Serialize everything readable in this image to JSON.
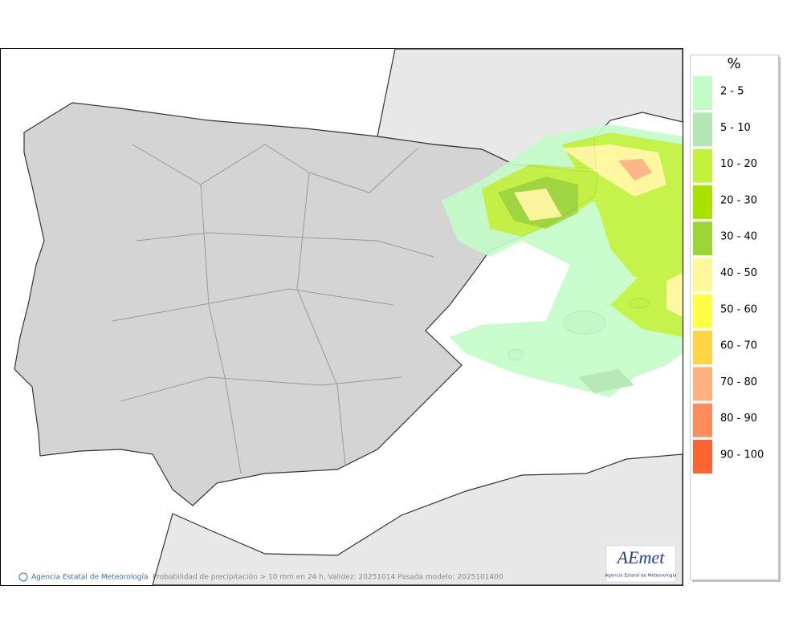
{
  "legend": {
    "title": "%",
    "items": [
      {
        "label": "2 - 5",
        "color": "#c4fcc8"
      },
      {
        "label": "5 - 10",
        "color": "#b2e6b2"
      },
      {
        "label": "10 - 20",
        "color": "#c2f23c"
      },
      {
        "label": "20 - 30",
        "color": "#a8e200"
      },
      {
        "label": "30 - 40",
        "color": "#9cd636"
      },
      {
        "label": "40 - 50",
        "color": "#fff79a"
      },
      {
        "label": "50 - 60",
        "color": "#ffff44"
      },
      {
        "label": "60 - 70",
        "color": "#ffd444"
      },
      {
        "label": "70 - 80",
        "color": "#ffb07c"
      },
      {
        "label": "80 - 90",
        "color": "#ff8a5a"
      },
      {
        "label": "90 - 100",
        "color": "#ff6430"
      }
    ]
  },
  "footer": {
    "credit": "Agencia Estatal de Meteorología",
    "caption": "Probabilidad de precipitación > 10 mm en 24 h. Validez: 20251014 Pasada modelo: 2025101400"
  },
  "logo": {
    "name": "AEmet",
    "subtitle": "Agencia Estatal de Meteorología"
  }
}
